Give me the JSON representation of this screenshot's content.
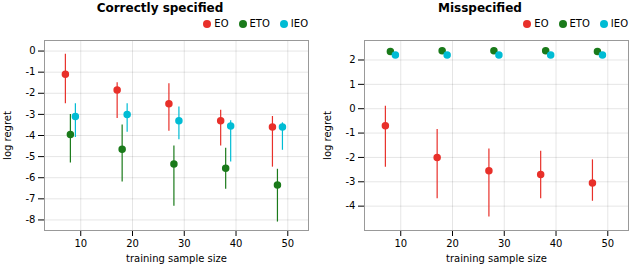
{
  "chart_data": [
    {
      "type": "errorbar",
      "title": "Correctly specified",
      "xlabel": "training sample size",
      "ylabel": "log regret",
      "x": [
        8,
        18,
        28,
        38,
        48
      ],
      "series": [
        {
          "name": "EO",
          "color": "#e8302a",
          "values": [
            -1.1,
            -1.85,
            -2.5,
            -3.3,
            -3.6
          ],
          "yerr_low": [
            1.4,
            1.35,
            1.3,
            1.2,
            1.9
          ],
          "yerr_high": [
            0.95,
            0.35,
            0.95,
            0.5,
            0.5
          ]
        },
        {
          "name": "ETO",
          "color": "#1a7a1a",
          "values": [
            -3.95,
            -4.65,
            -5.35,
            -5.55,
            -6.35
          ],
          "yerr_low": [
            1.35,
            1.55,
            2.0,
            1.0,
            1.75
          ],
          "yerr_high": [
            0.95,
            1.15,
            0.85,
            0.95,
            0.75
          ]
        },
        {
          "name": "IEO",
          "color": "#00bcd4",
          "values": [
            -3.1,
            -3.0,
            -3.3,
            -3.55,
            -3.6
          ],
          "yerr_low": [
            1.0,
            0.85,
            0.9,
            1.7,
            1.1
          ],
          "yerr_high": [
            0.6,
            0.5,
            0.65,
            0.25,
            0.2
          ]
        }
      ],
      "xlim": [
        3,
        54
      ],
      "xticks": [
        10,
        20,
        30,
        40,
        50
      ],
      "ylim": [
        -8.5,
        0.5
      ],
      "yticks": [
        0,
        -1,
        -2,
        -3,
        -4,
        -5,
        -6,
        -7,
        -8
      ],
      "grid": true,
      "legend": "top",
      "marker": "circle"
    },
    {
      "type": "errorbar",
      "title": "Misspecified",
      "xlabel": "training sample size",
      "ylabel": "log regret",
      "x": [
        8,
        18,
        28,
        38,
        48
      ],
      "series": [
        {
          "name": "EO",
          "color": "#e8302a",
          "values": [
            -0.7,
            -2.0,
            -2.55,
            -2.7,
            -3.05
          ],
          "yerr_low": [
            1.7,
            1.7,
            1.9,
            1.0,
            0.75
          ],
          "yerr_high": [
            0.8,
            1.15,
            0.9,
            0.95,
            0.95
          ]
        },
        {
          "name": "ETO",
          "color": "#1a7a1a",
          "values": [
            2.35,
            2.38,
            2.38,
            2.38,
            2.35
          ],
          "yerr_low": [
            0.08,
            0.06,
            0.06,
            0.06,
            0.08
          ],
          "yerr_high": [
            0.08,
            0.06,
            0.06,
            0.06,
            0.08
          ]
        },
        {
          "name": "IEO",
          "color": "#00bcd4",
          "values": [
            2.2,
            2.2,
            2.2,
            2.2,
            2.2
          ],
          "yerr_low": [
            0.08,
            0.08,
            0.08,
            0.08,
            0.08
          ],
          "yerr_high": [
            0.08,
            0.08,
            0.08,
            0.08,
            0.08
          ]
        }
      ],
      "xlim": [
        3,
        54
      ],
      "xticks": [
        10,
        20,
        30,
        40,
        50
      ],
      "ylim": [
        -5.0,
        2.8
      ],
      "yticks": [
        2,
        1,
        0,
        -1,
        -2,
        -3,
        -4
      ],
      "grid": true,
      "legend": "top",
      "marker": "circle"
    }
  ]
}
